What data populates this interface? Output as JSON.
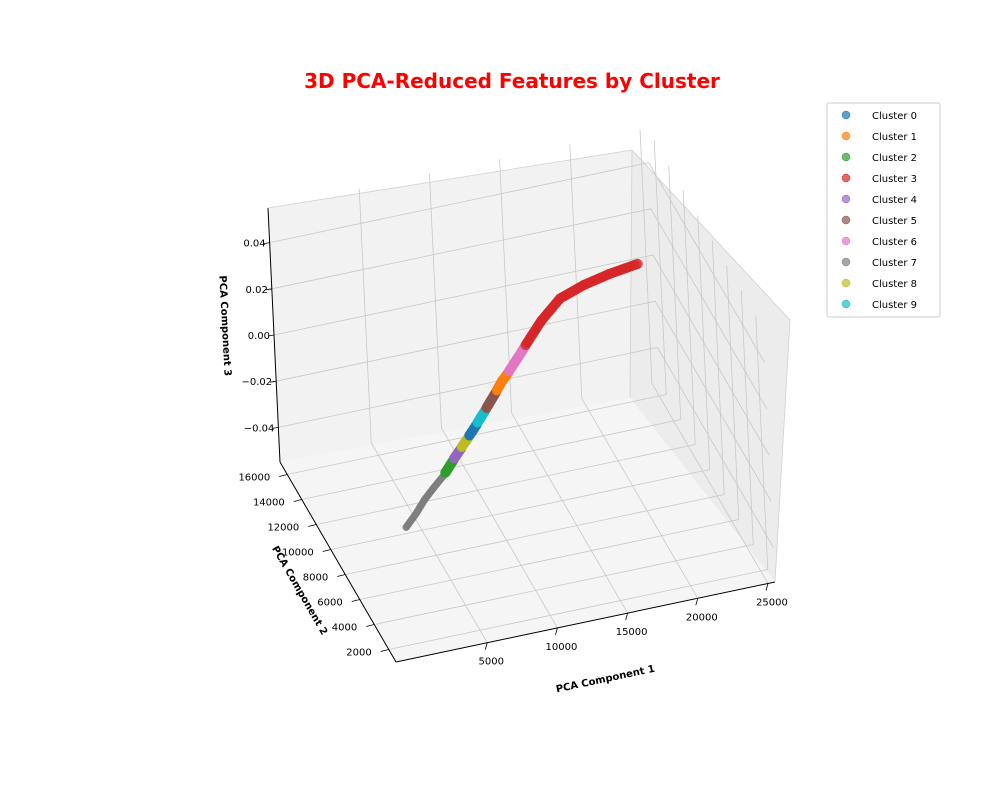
{
  "chart_data": {
    "type": "scatter",
    "projection": "3d",
    "title": "3D PCA-Reduced Features by Cluster",
    "title_color": "#ff0000",
    "xlabel": "PCA Component 1",
    "ylabel": "PCA Component 2",
    "zlabel": "PCA Component 3",
    "xlim": [
      -1500,
      25500
    ],
    "ylim": [
      1000,
      17000
    ],
    "zlim": [
      -0.055,
      0.055
    ],
    "xticks": [
      "5000",
      "10000",
      "15000",
      "20000",
      "25000"
    ],
    "yticks": [
      "2000",
      "4000",
      "6000",
      "8000",
      "10000",
      "12000",
      "14000",
      "16000"
    ],
    "zticks": [
      "−0.04",
      "−0.02",
      "0.00",
      "0.02",
      "0.04"
    ],
    "grid": true,
    "legend_position": "upper-right-outside",
    "legend": [
      {
        "name": "Cluster 0",
        "color": "#1f77b4"
      },
      {
        "name": "Cluster 1",
        "color": "#ff7f0e"
      },
      {
        "name": "Cluster 2",
        "color": "#2ca02c"
      },
      {
        "name": "Cluster 3",
        "color": "#d62728"
      },
      {
        "name": "Cluster 4",
        "color": "#9467bd"
      },
      {
        "name": "Cluster 5",
        "color": "#8c564b"
      },
      {
        "name": "Cluster 6",
        "color": "#e377c2"
      },
      {
        "name": "Cluster 7",
        "color": "#7f7f7f"
      },
      {
        "name": "Cluster 8",
        "color": "#bcbd22"
      },
      {
        "name": "Cluster 9",
        "color": "#17becf"
      }
    ],
    "series": [
      {
        "cluster": 7,
        "x": [
          -200,
          900,
          2000,
          3000,
          4200
        ],
        "y": [
          1300,
          2100,
          3000,
          3700,
          4500
        ],
        "z": [
          0,
          0,
          0,
          0,
          0
        ]
      },
      {
        "cluster": 2,
        "x": [
          4300,
          4800,
          5300
        ],
        "y": [
          4600,
          5000,
          5400
        ],
        "z": [
          0,
          0,
          0
        ]
      },
      {
        "cluster": 4,
        "x": [
          5400,
          5800,
          6200
        ],
        "y": [
          5500,
          5800,
          6100
        ],
        "z": [
          0,
          0,
          0
        ]
      },
      {
        "cluster": 8,
        "x": [
          6300,
          6700,
          7100
        ],
        "y": [
          6200,
          6500,
          6800
        ],
        "z": [
          0,
          0,
          0
        ]
      },
      {
        "cluster": 0,
        "x": [
          7200,
          7600,
          8100
        ],
        "y": [
          6900,
          7200,
          7600
        ],
        "z": [
          0,
          0,
          0
        ]
      },
      {
        "cluster": 9,
        "x": [
          8200,
          8700,
          9200
        ],
        "y": [
          7700,
          8100,
          8500
        ],
        "z": [
          0,
          0,
          0
        ]
      },
      {
        "cluster": 5,
        "x": [
          9300,
          9900,
          10500
        ],
        "y": [
          8600,
          9100,
          9600
        ],
        "z": [
          0,
          0,
          0
        ]
      },
      {
        "cluster": 1,
        "x": [
          10600,
          11300,
          12000
        ],
        "y": [
          9700,
          10300,
          10800
        ],
        "z": [
          0,
          0,
          0
        ]
      },
      {
        "cluster": 6,
        "x": [
          12100,
          13000,
          14000
        ],
        "y": [
          10900,
          11600,
          12400
        ],
        "z": [
          0,
          0,
          0
        ]
      },
      {
        "cluster": 3,
        "x": [
          14100,
          16000,
          18000,
          20000,
          22000,
          24200
        ],
        "y": [
          12500,
          14000,
          15300,
          15900,
          16300,
          16600
        ],
        "z": [
          0,
          0,
          0,
          0,
          0,
          0
        ]
      }
    ]
  }
}
